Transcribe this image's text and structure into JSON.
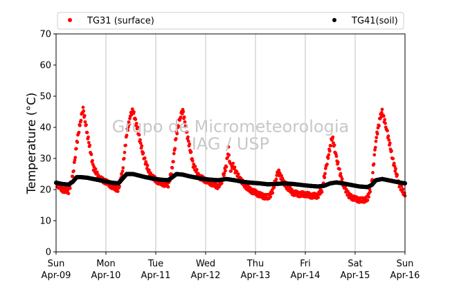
{
  "chart_data": {
    "type": "scatter",
    "title": "",
    "xlabel": "",
    "ylabel": "Temperature (°C)",
    "ylim": [
      0,
      70
    ],
    "yticks": [
      0,
      10,
      20,
      30,
      40,
      50,
      60,
      70
    ],
    "xlim_days": [
      0,
      7
    ],
    "x_ticks": [
      {
        "day": "Sun",
        "date": "Apr-09"
      },
      {
        "day": "Mon",
        "date": "Apr-10"
      },
      {
        "day": "Tue",
        "date": "Apr-11"
      },
      {
        "day": "Wed",
        "date": "Apr-12"
      },
      {
        "day": "Thu",
        "date": "Apr-13"
      },
      {
        "day": "Fri",
        "date": "Apr-14"
      },
      {
        "day": "Sat",
        "date": "Apr-15"
      },
      {
        "day": "Sun",
        "date": "Apr-16"
      }
    ],
    "grid": "vertical",
    "legend_placement": "top",
    "watermark": [
      "Grupo de Micrometeorologia",
      "IAG / USP"
    ],
    "series": [
      {
        "name": "TG31 (surface)",
        "color": "#ff0000",
        "marker": "circle",
        "points": [
          [
            "Apr-09 00:00",
            22
          ],
          [
            "Apr-09 03:00",
            20
          ],
          [
            "Apr-09 06:00",
            19.5
          ],
          [
            "Apr-09 08:00",
            24
          ],
          [
            "Apr-09 10:00",
            35
          ],
          [
            "Apr-09 12:00",
            43
          ],
          [
            "Apr-09 13:00",
            46
          ],
          [
            "Apr-09 15:00",
            38
          ],
          [
            "Apr-09 18:00",
            27
          ],
          [
            "Apr-09 21:00",
            23.5
          ],
          [
            "Apr-10 00:00",
            22.5
          ],
          [
            "Apr-10 03:00",
            21
          ],
          [
            "Apr-10 06:00",
            20
          ],
          [
            "Apr-10 08:00",
            26
          ],
          [
            "Apr-10 10:00",
            38
          ],
          [
            "Apr-10 12:00",
            44
          ],
          [
            "Apr-10 13:00",
            45.5
          ],
          [
            "Apr-10 15:00",
            40
          ],
          [
            "Apr-10 18:00",
            31
          ],
          [
            "Apr-10 21:00",
            25
          ],
          [
            "Apr-11 00:00",
            23
          ],
          [
            "Apr-11 03:00",
            22
          ],
          [
            "Apr-11 06:00",
            21.5
          ],
          [
            "Apr-11 08:00",
            27
          ],
          [
            "Apr-11 10:00",
            38
          ],
          [
            "Apr-11 12:00",
            44
          ],
          [
            "Apr-11 13:00",
            45.5
          ],
          [
            "Apr-11 15:00",
            38
          ],
          [
            "Apr-11 18:00",
            28
          ],
          [
            "Apr-11 21:00",
            24
          ],
          [
            "Apr-12 00:00",
            23
          ],
          [
            "Apr-12 03:00",
            22
          ],
          [
            "Apr-12 06:00",
            21
          ],
          [
            "Apr-12 08:00",
            23
          ],
          [
            "Apr-12 10:00",
            28
          ],
          [
            "Apr-12 11:00",
            33
          ],
          [
            "Apr-12 12:00",
            26
          ],
          [
            "Apr-12 13:00",
            28
          ],
          [
            "Apr-12 15:00",
            25
          ],
          [
            "Apr-12 18:00",
            22
          ],
          [
            "Apr-12 21:00",
            20
          ],
          [
            "Apr-13 00:00",
            19
          ],
          [
            "Apr-13 03:00",
            18
          ],
          [
            "Apr-13 06:00",
            17.5
          ],
          [
            "Apr-13 08:00",
            19
          ],
          [
            "Apr-13 10:00",
            24
          ],
          [
            "Apr-13 11:00",
            26
          ],
          [
            "Apr-13 13:00",
            23
          ],
          [
            "Apr-13 15:00",
            21
          ],
          [
            "Apr-13 18:00",
            19
          ],
          [
            "Apr-13 21:00",
            18.5
          ],
          [
            "Apr-14 00:00",
            18.5
          ],
          [
            "Apr-14 03:00",
            18
          ],
          [
            "Apr-14 06:00",
            18
          ],
          [
            "Apr-14 08:00",
            20
          ],
          [
            "Apr-14 10:00",
            27
          ],
          [
            "Apr-14 12:00",
            34
          ],
          [
            "Apr-14 13:00",
            37
          ],
          [
            "Apr-14 15:00",
            30
          ],
          [
            "Apr-14 18:00",
            22
          ],
          [
            "Apr-14 21:00",
            18
          ],
          [
            "Apr-15 00:00",
            17
          ],
          [
            "Apr-15 03:00",
            16.5
          ],
          [
            "Apr-15 06:00",
            17
          ],
          [
            "Apr-15 08:00",
            22
          ],
          [
            "Apr-15 10:00",
            36
          ],
          [
            "Apr-15 12:00",
            43
          ],
          [
            "Apr-15 13:00",
            45
          ],
          [
            "Apr-15 15:00",
            40
          ],
          [
            "Apr-15 18:00",
            30
          ],
          [
            "Apr-15 21:00",
            22
          ],
          [
            "Apr-16 00:00",
            18
          ]
        ]
      },
      {
        "name": "TG41(soil)",
        "color": "#000000",
        "marker": "circle",
        "points": [
          [
            "Apr-09 00:00",
            22.2
          ],
          [
            "Apr-09 03:00",
            21.8
          ],
          [
            "Apr-09 06:00",
            21.6
          ],
          [
            "Apr-09 08:00",
            22.5
          ],
          [
            "Apr-09 10:00",
            24
          ],
          [
            "Apr-09 12:00",
            24
          ],
          [
            "Apr-09 15:00",
            23.8
          ],
          [
            "Apr-09 18:00",
            23.4
          ],
          [
            "Apr-09 21:00",
            23
          ],
          [
            "Apr-10 00:00",
            22.6
          ],
          [
            "Apr-10 03:00",
            22.2
          ],
          [
            "Apr-10 06:00",
            22
          ],
          [
            "Apr-10 08:00",
            23.5
          ],
          [
            "Apr-10 10:00",
            25
          ],
          [
            "Apr-10 13:00",
            25
          ],
          [
            "Apr-10 16:00",
            24.5
          ],
          [
            "Apr-10 19:00",
            24
          ],
          [
            "Apr-10 22:00",
            23.6
          ],
          [
            "Apr-11 02:00",
            23.2
          ],
          [
            "Apr-11 06:00",
            23
          ],
          [
            "Apr-11 08:00",
            24
          ],
          [
            "Apr-11 10:00",
            25
          ],
          [
            "Apr-11 13:00",
            24.8
          ],
          [
            "Apr-11 16:00",
            24.3
          ],
          [
            "Apr-11 19:00",
            23.9
          ],
          [
            "Apr-11 22:00",
            23.5
          ],
          [
            "Apr-12 02:00",
            23.2
          ],
          [
            "Apr-12 06:00",
            23
          ],
          [
            "Apr-12 10:00",
            23.4
          ],
          [
            "Apr-12 14:00",
            23
          ],
          [
            "Apr-12 18:00",
            22.5
          ],
          [
            "Apr-12 22:00",
            22.2
          ],
          [
            "Apr-13 02:00",
            22
          ],
          [
            "Apr-13 06:00",
            21.7
          ],
          [
            "Apr-13 10:00",
            21.8
          ],
          [
            "Apr-13 14:00",
            22
          ],
          [
            "Apr-13 18:00",
            21.8
          ],
          [
            "Apr-13 22:00",
            21.5
          ],
          [
            "Apr-14 02:00",
            21.2
          ],
          [
            "Apr-14 06:00",
            21
          ],
          [
            "Apr-14 09:00",
            21.2
          ],
          [
            "Apr-14 12:00",
            22
          ],
          [
            "Apr-14 15:00",
            22.3
          ],
          [
            "Apr-14 18:00",
            22
          ],
          [
            "Apr-14 22:00",
            21.5
          ],
          [
            "Apr-15 02:00",
            21
          ],
          [
            "Apr-15 06:00",
            20.8
          ],
          [
            "Apr-15 08:00",
            21.5
          ],
          [
            "Apr-15 10:00",
            23
          ],
          [
            "Apr-15 13:00",
            23.4
          ],
          [
            "Apr-15 16:00",
            23
          ],
          [
            "Apr-15 19:00",
            22.6
          ],
          [
            "Apr-15 22:00",
            22.2
          ],
          [
            "Apr-16 00:00",
            22
          ]
        ]
      }
    ]
  }
}
